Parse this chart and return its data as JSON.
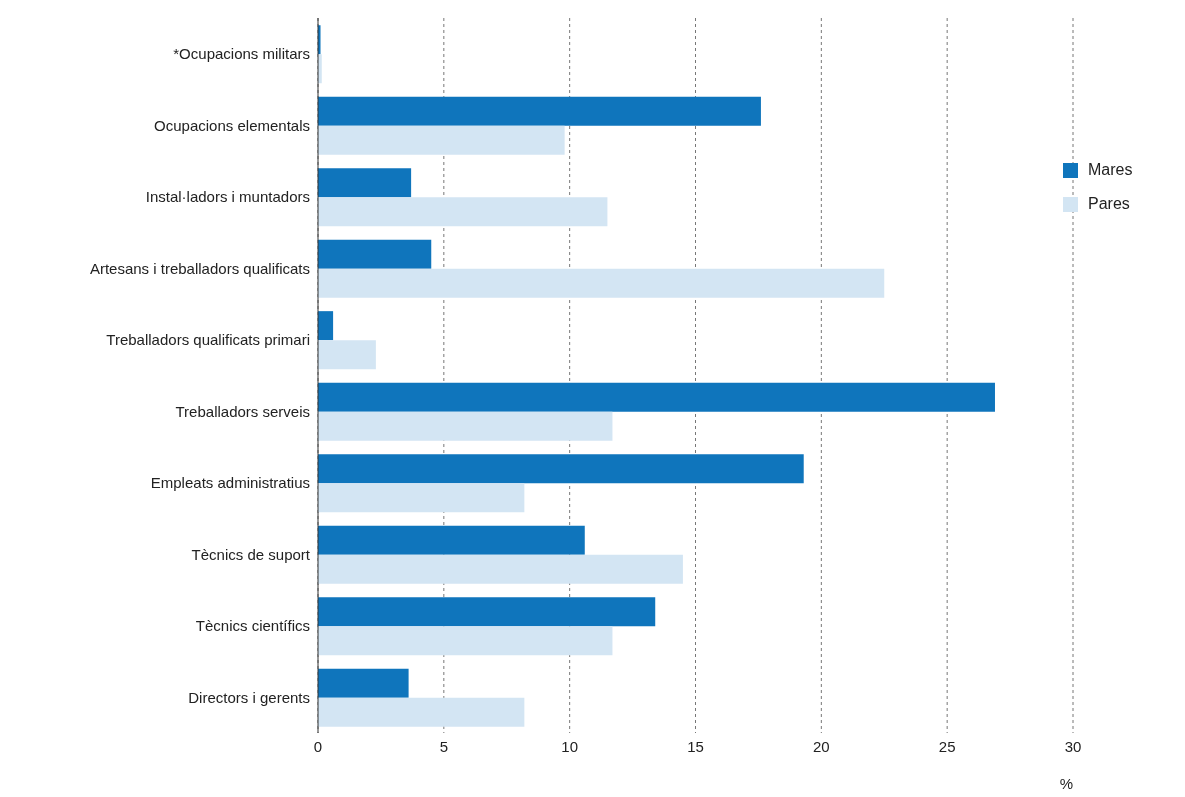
{
  "chart_data": {
    "type": "bar",
    "orientation": "horizontal",
    "xlabel": "%",
    "categories": [
      "*Ocupacions militars",
      "Ocupacions elementals",
      "Instal·ladors i muntadors",
      "Artesans i treballadors qualificats",
      "Treballadors qualificats primari",
      "Treballadors serveis",
      "Empleats administratius",
      "Tècnics de suport",
      "Tècnics científics",
      "Directors i gerents"
    ],
    "series": [
      {
        "name": "Mares",
        "color": "#0f75bc",
        "values": [
          0.1,
          17.6,
          3.7,
          4.5,
          0.6,
          26.9,
          19.3,
          10.6,
          13.4,
          3.6
        ]
      },
      {
        "name": "Pares",
        "color": "#d3e5f3",
        "values": [
          0.15,
          9.8,
          11.5,
          22.5,
          2.3,
          11.7,
          8.2,
          14.5,
          11.7,
          8.2
        ]
      }
    ],
    "xlim": [
      0,
      30
    ],
    "xticks": [
      0,
      5,
      10,
      15,
      20,
      25,
      30
    ],
    "grid": "x",
    "legend": "top right"
  }
}
